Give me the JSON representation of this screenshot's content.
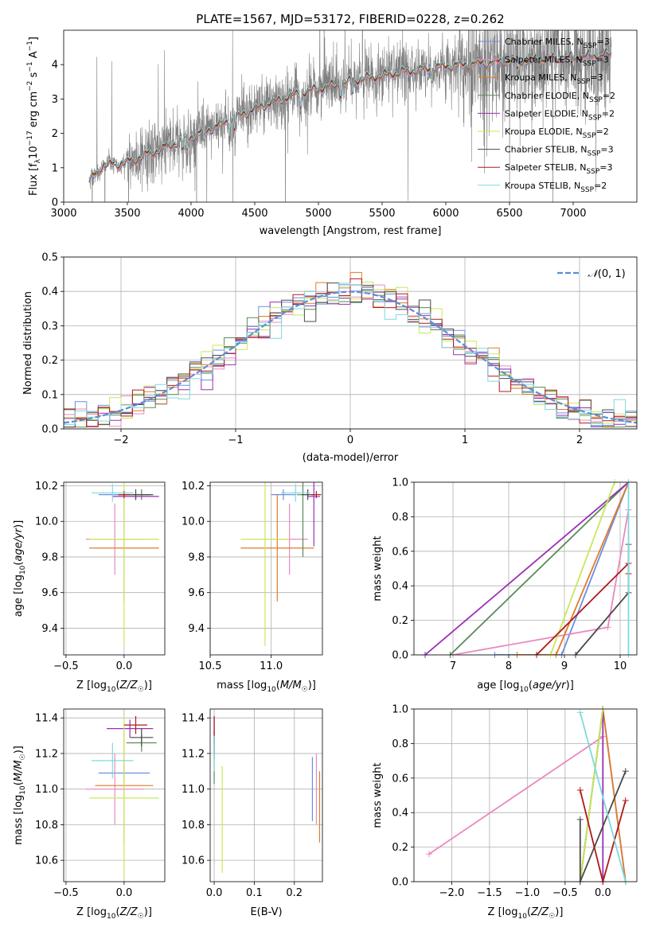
{
  "title": "PLATE=1567, MJD=53172, FIBERID=0228, z=0.262",
  "colors": {
    "data": "#808080",
    "chabrier_miles": "#6c8ee0",
    "salpeter_miles": "#e88ac0",
    "kroupa_miles": "#e07b28",
    "chabrier_elodie": "#5a8a5a",
    "salpeter_elodie": "#9b2fb5",
    "kroupa_elodie": "#c8e85a",
    "chabrier_stelib": "#4a4a4a",
    "salpeter_stelib": "#b01818",
    "kroupa_stelib": "#7fd8e0",
    "gaussian": "#5b8fd6"
  },
  "legend": [
    {
      "label": "Chabrier MILES, N",
      "sub": "SSP",
      "tail": "=3",
      "color_key": "chabrier_miles"
    },
    {
      "label": "Salpeter MILES, N",
      "sub": "SSP",
      "tail": "=3",
      "color_key": "salpeter_miles"
    },
    {
      "label": "Kroupa MILES, N",
      "sub": "SSP",
      "tail": "=3",
      "color_key": "kroupa_miles"
    },
    {
      "label": "Chabrier ELODIE, N",
      "sub": "SSP",
      "tail": "=2",
      "color_key": "chabrier_elodie"
    },
    {
      "label": "Salpeter ELODIE, N",
      "sub": "SSP",
      "tail": "=2",
      "color_key": "salpeter_elodie"
    },
    {
      "label": "Kroupa ELODIE, N",
      "sub": "SSP",
      "tail": "=2",
      "color_key": "kroupa_elodie"
    },
    {
      "label": "Chabrier STELIB, N",
      "sub": "SSP",
      "tail": "=3",
      "color_key": "chabrier_stelib"
    },
    {
      "label": "Salpeter STELIB, N",
      "sub": "SSP",
      "tail": "=3",
      "color_key": "salpeter_stelib"
    },
    {
      "label": "Kroupa STELIB, N",
      "sub": "SSP",
      "tail": "=2",
      "color_key": "kroupa_stelib"
    }
  ],
  "chart_data": [
    {
      "id": "spectrum",
      "type": "line",
      "title": "PLATE=1567, MJD=53172, FIBERID=0228, z=0.262",
      "xlabel": "wavelength [Angstrom, rest frame]",
      "ylabel": "Flux [f",
      "ylabel_full": "Flux [fλ 10⁻¹⁷ erg cm⁻² s⁻¹ A⁻¹]",
      "xlim": [
        3000,
        7500
      ],
      "ylim": [
        0,
        5
      ],
      "xticks": [
        3000,
        3500,
        4000,
        4500,
        5000,
        5500,
        6000,
        6500,
        7000
      ],
      "yticks": [
        0,
        1,
        2,
        3,
        4
      ],
      "continuum": [
        [
          3200,
          0.6
        ],
        [
          3300,
          1.05
        ],
        [
          3500,
          1.15
        ],
        [
          3700,
          1.45
        ],
        [
          3900,
          1.75
        ],
        [
          4000,
          1.9
        ],
        [
          4200,
          2.2
        ],
        [
          4400,
          2.55
        ],
        [
          4600,
          2.85
        ],
        [
          4800,
          3.1
        ],
        [
          5000,
          3.3
        ],
        [
          5300,
          3.55
        ],
        [
          5600,
          3.75
        ],
        [
          6000,
          3.95
        ],
        [
          6500,
          4.1
        ],
        [
          7000,
          4.2
        ],
        [
          7300,
          4.3
        ]
      ],
      "grid": false
    },
    {
      "id": "residuals",
      "type": "area",
      "xlabel": "(data-model)/error",
      "ylabel": "Normed distribution",
      "xlim": [
        -2.5,
        2.5
      ],
      "ylim": [
        0,
        0.5
      ],
      "xticks": [
        -2,
        -1,
        0,
        1,
        2
      ],
      "yticks": [
        0.0,
        0.1,
        0.2,
        0.3,
        0.4,
        0.5
      ],
      "gaussian_label": "N(0,1)",
      "bin_width": 0.1,
      "grid": true
    },
    {
      "id": "age-vs-Z",
      "type": "scatter",
      "xlabel": "Z [log10(Z/Z☉)]",
      "ylabel": "age  [log10(age/yr)]",
      "xlim": [
        -0.52,
        0.35
      ],
      "ylim": [
        9.25,
        10.22
      ],
      "xticks": [
        -0.5,
        0.0
      ],
      "yticks": [
        9.4,
        9.6,
        9.8,
        10.0,
        10.2
      ],
      "grid": true,
      "points": [
        {
          "c": "chabrier_miles",
          "x": 0.0,
          "xe": 0.22,
          "y": 10.15,
          "ye": 0.03
        },
        {
          "c": "salpeter_miles",
          "x": -0.08,
          "xe": 0.25,
          "y": 9.9,
          "ye": 0.2
        },
        {
          "c": "kroupa_miles",
          "x": 0.0,
          "xe": 0.3,
          "y": 9.85,
          "ye": 0.3
        },
        {
          "c": "chabrier_elodie",
          "x": 0.15,
          "xe": 0.08,
          "y": 10.15,
          "ye": 0.03
        },
        {
          "c": "salpeter_elodie",
          "x": 0.1,
          "xe": 0.2,
          "y": 10.14,
          "ye": 0.02
        },
        {
          "c": "kroupa_elodie",
          "x": 0.0,
          "xe": 0.3,
          "y": 9.9,
          "ye": 0.6
        },
        {
          "c": "chabrier_stelib",
          "x": 0.1,
          "xe": 0.15,
          "y": 10.15,
          "ye": 0.03
        },
        {
          "c": "salpeter_stelib",
          "x": 0.0,
          "xe": 0.05,
          "y": 10.15,
          "ye": 0.02
        },
        {
          "c": "kroupa_stelib",
          "x": -0.1,
          "xe": 0.18,
          "y": 10.16,
          "ye": 0.05
        }
      ]
    },
    {
      "id": "age-vs-mass",
      "type": "scatter",
      "xlabel": "mass [log10(M/M☉)]",
      "ylabel": "",
      "xlim": [
        10.5,
        11.42
      ],
      "ylim": [
        9.25,
        10.22
      ],
      "xticks": [
        10.5,
        11.0
      ],
      "yticks": [
        9.4,
        9.6,
        9.8,
        10.0,
        10.2
      ],
      "grid": true,
      "points": [
        {
          "c": "chabrier_miles",
          "x": 11.1,
          "xe": 0.1,
          "y": 10.15,
          "ye": 0.03
        },
        {
          "c": "salpeter_miles",
          "x": 11.15,
          "xe": 0.15,
          "y": 9.9,
          "ye": 0.2
        },
        {
          "c": "kroupa_miles",
          "x": 11.05,
          "xe": 0.3,
          "y": 9.85,
          "ye": 0.3
        },
        {
          "c": "chabrier_elodie",
          "x": 11.26,
          "xe": 0.05,
          "y": 10.15,
          "ye": 0.35
        },
        {
          "c": "salpeter_elodie",
          "x": 11.35,
          "xe": 0.05,
          "y": 10.14,
          "ye": 0.28
        },
        {
          "c": "kroupa_elodie",
          "x": 10.95,
          "xe": 0.2,
          "y": 9.9,
          "ye": 0.6
        },
        {
          "c": "chabrier_stelib",
          "x": 11.3,
          "xe": 0.05,
          "y": 10.15,
          "ye": 0.03
        },
        {
          "c": "salpeter_stelib",
          "x": 11.37,
          "xe": 0.04,
          "y": 10.15,
          "ye": 0.02
        },
        {
          "c": "kroupa_stelib",
          "x": 11.2,
          "xe": 0.12,
          "y": 10.16,
          "ye": 0.05
        }
      ]
    },
    {
      "id": "weight-vs-age",
      "type": "line",
      "xlabel": "age  [log10(age/yr)]",
      "ylabel": "mass weight",
      "xlim": [
        6.3,
        10.3
      ],
      "ylim": [
        0,
        1
      ],
      "xticks": [
        7,
        8,
        9,
        10
      ],
      "yticks": [
        0.0,
        0.2,
        0.4,
        0.6,
        0.8,
        1.0
      ],
      "grid": true,
      "series": [
        {
          "c": "chabrier_miles",
          "x": [
            7.75,
            8.95,
            10.15
          ],
          "y": [
            0.0,
            0.0,
            1.0
          ]
        },
        {
          "c": "salpeter_miles",
          "x": [
            7.0,
            9.78,
            10.15
          ],
          "y": [
            0.0,
            0.16,
            0.84
          ]
        },
        {
          "c": "kroupa_miles",
          "x": [
            8.15,
            8.85,
            10.15
          ],
          "y": [
            0.0,
            0.0,
            1.0
          ]
        },
        {
          "c": "chabrier_elodie",
          "x": [
            6.95,
            10.15
          ],
          "y": [
            0.0,
            1.0
          ]
        },
        {
          "c": "salpeter_elodie",
          "x": [
            6.5,
            10.15
          ],
          "y": [
            0.0,
            1.0
          ]
        },
        {
          "c": "kroupa_elodie",
          "x": [
            8.75,
            9.9
          ],
          "y": [
            0.0,
            1.0
          ]
        },
        {
          "c": "chabrier_stelib",
          "x": [
            9.2,
            10.15,
            10.15
          ],
          "y": [
            0.0,
            0.36,
            0.64
          ]
        },
        {
          "c": "salpeter_stelib",
          "x": [
            8.5,
            10.15,
            10.15
          ],
          "y": [
            0.0,
            0.53,
            0.47
          ]
        },
        {
          "c": "kroupa_stelib",
          "x": [
            10.15,
            10.15
          ],
          "y": [
            0.0,
            1.0
          ]
        }
      ]
    },
    {
      "id": "mass-vs-Z",
      "type": "scatter",
      "xlabel": "Z [log10(Z/Z☉)]",
      "ylabel": "mass [log10(M/M☉)]",
      "xlim": [
        -0.52,
        0.35
      ],
      "ylim": [
        10.48,
        11.45
      ],
      "xticks": [
        -0.5,
        0.0
      ],
      "yticks": [
        10.6,
        10.8,
        11.0,
        11.2,
        11.4
      ],
      "grid": true,
      "points": [
        {
          "c": "chabrier_miles",
          "x": 0.0,
          "xe": 0.22,
          "y": 11.09,
          "ye": 0.05
        },
        {
          "c": "salpeter_miles",
          "x": -0.08,
          "xe": 0.25,
          "y": 11.0,
          "ye": 0.2
        },
        {
          "c": "kroupa_miles",
          "x": 0.0,
          "xe": 0.25,
          "y": 11.02,
          "ye": 0.32
        },
        {
          "c": "chabrier_elodie",
          "x": 0.15,
          "xe": 0.13,
          "y": 11.26,
          "ye": 0.05
        },
        {
          "c": "salpeter_elodie",
          "x": 0.05,
          "xe": 0.2,
          "y": 11.34,
          "ye": 0.05
        },
        {
          "c": "kroupa_elodie",
          "x": 0.0,
          "xe": 0.3,
          "y": 10.95,
          "ye": 0.45
        },
        {
          "c": "chabrier_stelib",
          "x": 0.15,
          "xe": 0.1,
          "y": 11.29,
          "ye": 0.05
        },
        {
          "c": "salpeter_stelib",
          "x": 0.1,
          "xe": 0.1,
          "y": 11.36,
          "ye": 0.05
        },
        {
          "c": "kroupa_stelib",
          "x": -0.1,
          "xe": 0.18,
          "y": 11.16,
          "ye": 0.1
        }
      ]
    },
    {
      "id": "mass-vs-EBV",
      "type": "scatter",
      "xlabel": "E(B-V)",
      "ylabel": "",
      "xlim": [
        -0.01,
        0.27
      ],
      "ylim": [
        10.48,
        11.45
      ],
      "xticks": [
        0.0,
        0.1,
        0.2
      ],
      "yticks": [
        10.6,
        10.8,
        11.0,
        11.2,
        11.4
      ],
      "grid": true,
      "points": [
        {
          "c": "chabrier_miles",
          "x": 0.245,
          "xe": 0.0,
          "y": 11.0,
          "ye": 0.18
        },
        {
          "c": "salpeter_miles",
          "x": 0.255,
          "xe": 0.0,
          "y": 11.0,
          "ye": 0.2
        },
        {
          "c": "kroupa_miles",
          "x": 0.263,
          "xe": 0.0,
          "y": 10.9,
          "ye": 0.2
        },
        {
          "c": "chabrier_elodie",
          "x": 0.0,
          "xe": 0.0,
          "y": 11.15,
          "ye": 0.12
        },
        {
          "c": "salpeter_elodie",
          "x": 0.0,
          "xe": 0.0,
          "y": 11.3,
          "ye": 0.1
        },
        {
          "c": "kroupa_elodie",
          "x": 0.02,
          "xe": 0.0,
          "y": 10.83,
          "ye": 0.3
        },
        {
          "c": "chabrier_stelib",
          "x": 0.0,
          "xe": 0.0,
          "y": 11.25,
          "ye": 0.08
        },
        {
          "c": "salpeter_stelib",
          "x": 0.0,
          "xe": 0.0,
          "y": 11.34,
          "ye": 0.07
        },
        {
          "c": "kroupa_stelib",
          "x": 0.0,
          "xe": 0.0,
          "y": 11.2,
          "ye": 0.1
        }
      ]
    },
    {
      "id": "weight-vs-Z",
      "type": "line",
      "xlabel": "Z [log10(Z/Z☉)]",
      "ylabel": "mass weight",
      "xlim": [
        -2.5,
        0.45
      ],
      "ylim": [
        0,
        1
      ],
      "xticks": [
        -2.0,
        -1.5,
        -1.0,
        -0.5,
        0.0
      ],
      "yticks": [
        0.0,
        0.2,
        0.4,
        0.6,
        0.8,
        1.0
      ],
      "grid": true,
      "series": [
        {
          "c": "chabrier_miles",
          "x": [
            -0.3,
            0.0,
            0.3
          ],
          "y": [
            0.0,
            1.0,
            0.0
          ]
        },
        {
          "c": "salpeter_miles",
          "x": [
            -2.3,
            0.0
          ],
          "y": [
            0.16,
            0.84
          ]
        },
        {
          "c": "kroupa_miles",
          "x": [
            -0.3,
            0.0,
            0.3
          ],
          "y": [
            0.0,
            1.0,
            0.0
          ]
        },
        {
          "c": "chabrier_elodie",
          "x": [
            -0.3,
            0.0
          ],
          "y": [
            0.0,
            1.0
          ]
        },
        {
          "c": "salpeter_elodie",
          "x": [
            0.0,
            0.0
          ],
          "y": [
            0.0,
            1.0
          ]
        },
        {
          "c": "kroupa_elodie",
          "x": [
            -0.3,
            0.0
          ],
          "y": [
            0.0,
            1.0
          ]
        },
        {
          "c": "chabrier_stelib",
          "x": [
            -0.3,
            -0.3,
            0.3
          ],
          "y": [
            0.36,
            0.0,
            0.64
          ]
        },
        {
          "c": "salpeter_stelib",
          "x": [
            -0.3,
            0.0,
            0.3
          ],
          "y": [
            0.53,
            0.0,
            0.47
          ]
        },
        {
          "c": "kroupa_stelib",
          "x": [
            -0.3,
            0.3
          ],
          "y": [
            0.98,
            0.0
          ]
        }
      ]
    }
  ]
}
